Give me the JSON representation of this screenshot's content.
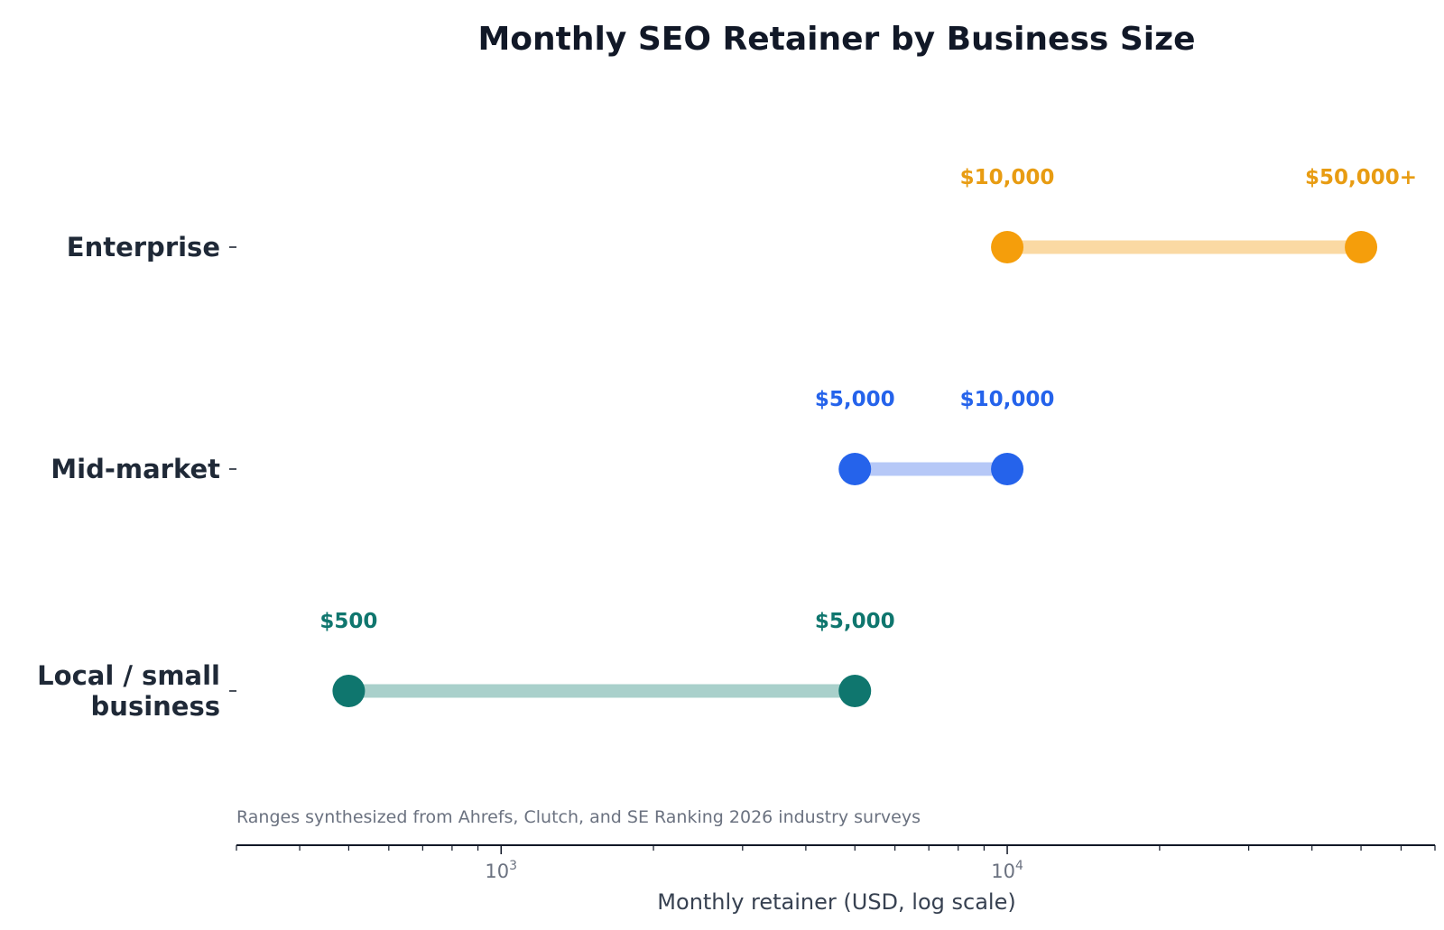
{
  "chart_data": {
    "type": "dumbbell",
    "title": "Monthly SEO Retainer by Business Size",
    "xlabel": "Monthly retainer (USD, log scale)",
    "xscale": "log",
    "xlim": [
      300,
      70000
    ],
    "major_ticks": [
      {
        "value": 1000,
        "base": "10",
        "exp": "3"
      },
      {
        "value": 10000,
        "base": "10",
        "exp": "4"
      }
    ],
    "note": "Ranges synthesized from Ahrefs, Clutch, and SE Ranking 2026 industry surveys",
    "series": [
      {
        "category_lines": [
          "Enterprise"
        ],
        "low": 10000,
        "high": 50000,
        "low_label": "$10,000",
        "high_label": "$50,000+",
        "color": "#f59e0b",
        "bar_color": "#fad9a3",
        "label_color": "#e89c12"
      },
      {
        "category_lines": [
          "Mid-market"
        ],
        "low": 5000,
        "high": 10000,
        "low_label": "$5,000",
        "high_label": "$10,000",
        "color": "#2563eb",
        "bar_color": "#b6c8f7",
        "label_color": "#2563eb"
      },
      {
        "category_lines": [
          "Local / small",
          "business"
        ],
        "low": 500,
        "high": 5000,
        "low_label": "$500",
        "high_label": "$5,000",
        "color": "#0f766e",
        "bar_color": "#a9d0cb",
        "label_color": "#0f766e"
      }
    ]
  }
}
